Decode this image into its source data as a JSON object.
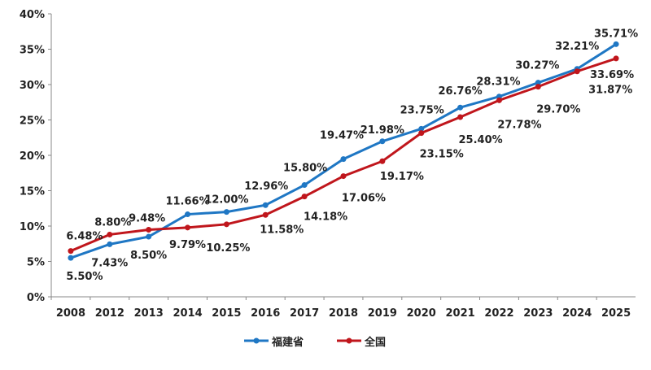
{
  "chart_data": {
    "type": "line",
    "title": "",
    "xlabel": "",
    "ylabel": "",
    "categories": [
      "2008",
      "2012",
      "2013",
      "2014",
      "2015",
      "2016",
      "2017",
      "2018",
      "2019",
      "2020",
      "2021",
      "2022",
      "2023",
      "2024",
      "2025"
    ],
    "ylim": [
      0,
      40
    ],
    "yticks": [
      "0%",
      "5%",
      "10%",
      "15%",
      "20%",
      "25%",
      "30%",
      "35%",
      "40%"
    ],
    "grid": false,
    "legend": "bottom",
    "series": [
      {
        "name": "福建省",
        "color": "#1f77c4",
        "values": [
          5.5,
          7.43,
          8.5,
          11.66,
          12.0,
          12.96,
          15.8,
          19.47,
          21.98,
          23.75,
          26.76,
          28.31,
          30.27,
          32.21,
          35.71
        ],
        "labels": [
          "5.50%",
          "7.43%",
          "8.50%",
          "11.66%",
          "12.00%",
          "12.96%",
          "15.80%",
          "19.47%",
          "21.98%",
          "23.75%",
          "26.76%",
          "28.31%",
          "30.27%",
          "32.21%",
          "35.71%"
        ]
      },
      {
        "name": "全国",
        "color": "#c0161c",
        "values": [
          6.48,
          8.8,
          9.48,
          9.79,
          10.25,
          11.58,
          14.18,
          17.06,
          19.17,
          23.15,
          25.4,
          27.78,
          29.7,
          31.87,
          33.69
        ],
        "labels": [
          "6.48%",
          "8.80%",
          "9.48%",
          "9.79%",
          "10.25%",
          "11.58%",
          "14.18%",
          "17.06%",
          "19.17%",
          "23.15%",
          "25.40%",
          "27.78%",
          "29.70%",
          "31.87%",
          "33.69%"
        ]
      }
    ]
  }
}
